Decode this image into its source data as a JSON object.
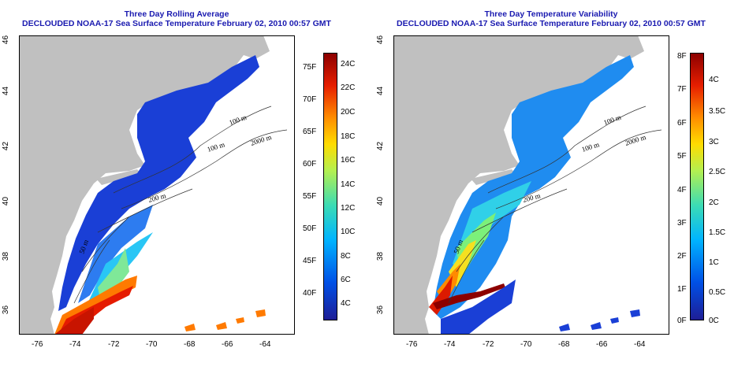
{
  "left_panel": {
    "title_line1": "Three Day Rolling Average",
    "title_line2": "DECLOUDED NOAA-17 Sea Surface Temperature February 02, 2010 00:57 GMT",
    "contour_labels": [
      "100 m",
      "100 m",
      "2000 m",
      "200 m",
      "50 m"
    ],
    "colorbar_f_labels": [
      "75F",
      "70F",
      "65F",
      "60F",
      "55F",
      "50F",
      "45F",
      "40F"
    ],
    "colorbar_c_labels": [
      "24C",
      "22C",
      "20C",
      "18C",
      "16C",
      "14C",
      "12C",
      "10C",
      "8C",
      "6C",
      "4C"
    ]
  },
  "right_panel": {
    "title_line1": "Three Day Temperature Variability",
    "title_line2": "DECLOUDED NOAA-17 Sea Surface Temperature February 02, 2010 00:57 GMT",
    "contour_labels": [
      "100 m",
      "100 m",
      "2000 m",
      "200 m",
      "50 m"
    ],
    "colorbar_f_labels": [
      "8F",
      "7F",
      "6F",
      "5F",
      "4F",
      "3F",
      "2F",
      "1F",
      "0F"
    ],
    "colorbar_c_labels": [
      "4C",
      "3.5C",
      "3C",
      "2.5C",
      "2C",
      "1.5C",
      "1C",
      "0.5C",
      "0C"
    ]
  },
  "axes": {
    "longitude_ticks": [
      "-76",
      "-74",
      "-72",
      "-70",
      "-68",
      "-66",
      "-64"
    ],
    "latitude_ticks": [
      "46",
      "44",
      "42",
      "40",
      "38",
      "36"
    ]
  },
  "colors": {
    "title": "#1a1ab0",
    "land": "#c0c0c0",
    "ocean_nodata": "#ffffff",
    "colorbar_stops": [
      "#1e1e96",
      "#0050e6",
      "#00b4ff",
      "#3cdcb4",
      "#b4f050",
      "#ffdc00",
      "#ff8c00",
      "#e61e00",
      "#8c0000"
    ]
  }
}
